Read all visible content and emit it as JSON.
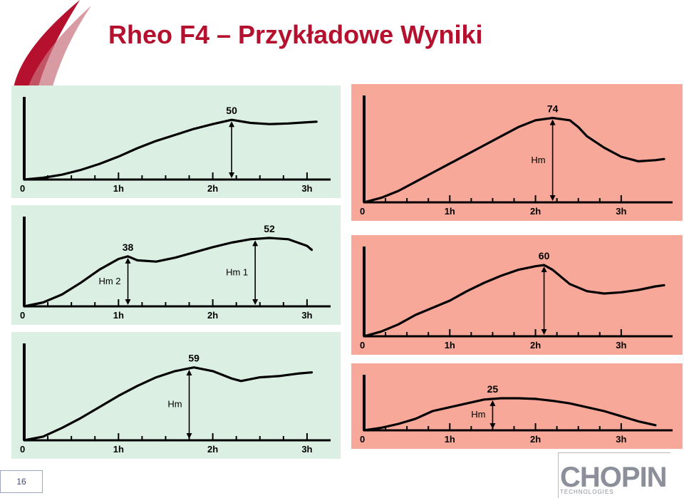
{
  "slide": {
    "title": "Rheo F4 – Przykładowe Wyniki",
    "page_number": "16",
    "logo_text": "CHOPIN",
    "logo_sub": "TECHNOLOGIES"
  },
  "colors": {
    "accent": "#b5112e",
    "green_bg": "#dcefe3",
    "red_bg": "#f7a898",
    "curve": "#000000"
  },
  "chart_data": [
    {
      "type": "line",
      "id": "c1",
      "bg": "green",
      "x_ticks": [
        "0",
        "1h",
        "2h",
        "3h"
      ],
      "x": [
        0,
        0.2,
        0.4,
        0.6,
        0.8,
        1.0,
        1.2,
        1.4,
        1.6,
        1.8,
        2.0,
        2.2,
        2.4,
        2.6,
        2.8,
        3.0,
        3.1
      ],
      "y": [
        0,
        1.5,
        4,
        8,
        13,
        19,
        26,
        32,
        37,
        42,
        46,
        49.5,
        47,
        46,
        46.5,
        47.5,
        48
      ],
      "xlim": [
        0,
        3.25
      ],
      "ylim": [
        0,
        65
      ],
      "peak": {
        "label": "50",
        "x": 2.2,
        "y": 49.5
      },
      "arrows": [
        {
          "x": 2.2,
          "label": ""
        }
      ]
    },
    {
      "type": "line",
      "id": "c2",
      "bg": "green",
      "x_ticks": [
        "0",
        "1h",
        "2h",
        "3h"
      ],
      "x": [
        0,
        0.2,
        0.4,
        0.6,
        0.8,
        1.0,
        1.1,
        1.2,
        1.4,
        1.6,
        1.8,
        2.0,
        2.2,
        2.4,
        2.6,
        2.8,
        3.0,
        3.05
      ],
      "y": [
        0,
        3,
        9,
        18,
        28,
        36,
        38,
        35,
        34,
        37,
        41,
        45,
        48.5,
        51,
        52,
        51,
        46,
        43
      ],
      "xlim": [
        0,
        3.25
      ],
      "ylim": [
        0,
        65
      ],
      "peak": {
        "label": "52",
        "x": 2.6,
        "y": 52
      },
      "secondary": {
        "label": "38",
        "x": 1.1,
        "y": 38
      },
      "arrows": [
        {
          "x": 2.45,
          "label": "Hm 1"
        },
        {
          "x": 1.1,
          "label": "Hm 2"
        }
      ]
    },
    {
      "type": "line",
      "id": "c3",
      "bg": "green",
      "x_ticks": [
        "0",
        "1h",
        "2h",
        "3h"
      ],
      "x": [
        0,
        0.2,
        0.4,
        0.6,
        0.8,
        1.0,
        1.2,
        1.4,
        1.6,
        1.8,
        2.0,
        2.2,
        2.3,
        2.5,
        2.7,
        2.9,
        3.05
      ],
      "y": [
        0,
        3,
        10,
        18,
        27,
        36,
        44,
        51,
        56,
        59,
        56,
        50,
        48,
        51,
        52,
        54,
        55
      ],
      "xlim": [
        0,
        3.25
      ],
      "ylim": [
        0,
        75
      ],
      "peak": {
        "label": "59",
        "x": 1.8,
        "y": 59
      },
      "arrows": [
        {
          "x": 1.75,
          "label": "Hm"
        }
      ]
    },
    {
      "type": "line",
      "id": "c4",
      "bg": "red",
      "x_ticks": [
        "0",
        "1h",
        "2h",
        "3h"
      ],
      "x": [
        0,
        0.2,
        0.4,
        0.6,
        0.8,
        1.0,
        1.2,
        1.4,
        1.6,
        1.8,
        2.0,
        2.2,
        2.4,
        2.5,
        2.6,
        2.8,
        3.0,
        3.2,
        3.4,
        3.5
      ],
      "y": [
        0,
        4,
        10,
        18,
        26,
        34,
        42,
        50,
        58,
        66,
        72,
        74,
        72,
        66,
        58,
        48,
        40,
        36,
        37,
        38
      ],
      "xlim": [
        0,
        3.6
      ],
      "ylim": [
        0,
        90
      ],
      "peak": {
        "label": "74",
        "x": 2.2,
        "y": 74
      },
      "arrows": [
        {
          "x": 2.2,
          "label": "Hm"
        }
      ]
    },
    {
      "type": "line",
      "id": "c5",
      "bg": "red",
      "x_ticks": [
        "0",
        "1h",
        "2h",
        "3h"
      ],
      "x": [
        0,
        0.2,
        0.4,
        0.6,
        0.8,
        1.0,
        1.2,
        1.4,
        1.6,
        1.8,
        2.0,
        2.1,
        2.2,
        2.4,
        2.6,
        2.8,
        3.0,
        3.2,
        3.4,
        3.5
      ],
      "y": [
        0,
        4,
        10,
        18,
        24,
        30,
        38,
        45,
        51,
        56,
        59,
        60,
        56,
        44,
        38,
        36,
        37,
        39,
        42,
        43
      ],
      "xlim": [
        0,
        3.6
      ],
      "ylim": [
        0,
        72
      ],
      "peak": {
        "label": "60",
        "x": 2.1,
        "y": 60
      },
      "arrows": [
        {
          "x": 2.1,
          "label": ""
        }
      ]
    },
    {
      "type": "line",
      "id": "c6",
      "bg": "red",
      "x_ticks": [
        "0",
        "1h",
        "2h",
        "3h"
      ],
      "x": [
        0,
        0.2,
        0.4,
        0.6,
        0.8,
        1.0,
        1.2,
        1.4,
        1.6,
        1.8,
        2.0,
        2.2,
        2.4,
        2.6,
        2.8,
        3.0,
        3.2,
        3.4
      ],
      "y": [
        0,
        2,
        5,
        9,
        15,
        18,
        21,
        24,
        25,
        25,
        24.5,
        23,
        21,
        18,
        15,
        11,
        7,
        4
      ],
      "xlim": [
        0,
        3.6
      ],
      "ylim": [
        0,
        40
      ],
      "peak": {
        "label": "25",
        "x": 1.5,
        "y": 25
      },
      "arrows": [
        {
          "x": 1.5,
          "label": "Hm"
        }
      ]
    }
  ]
}
